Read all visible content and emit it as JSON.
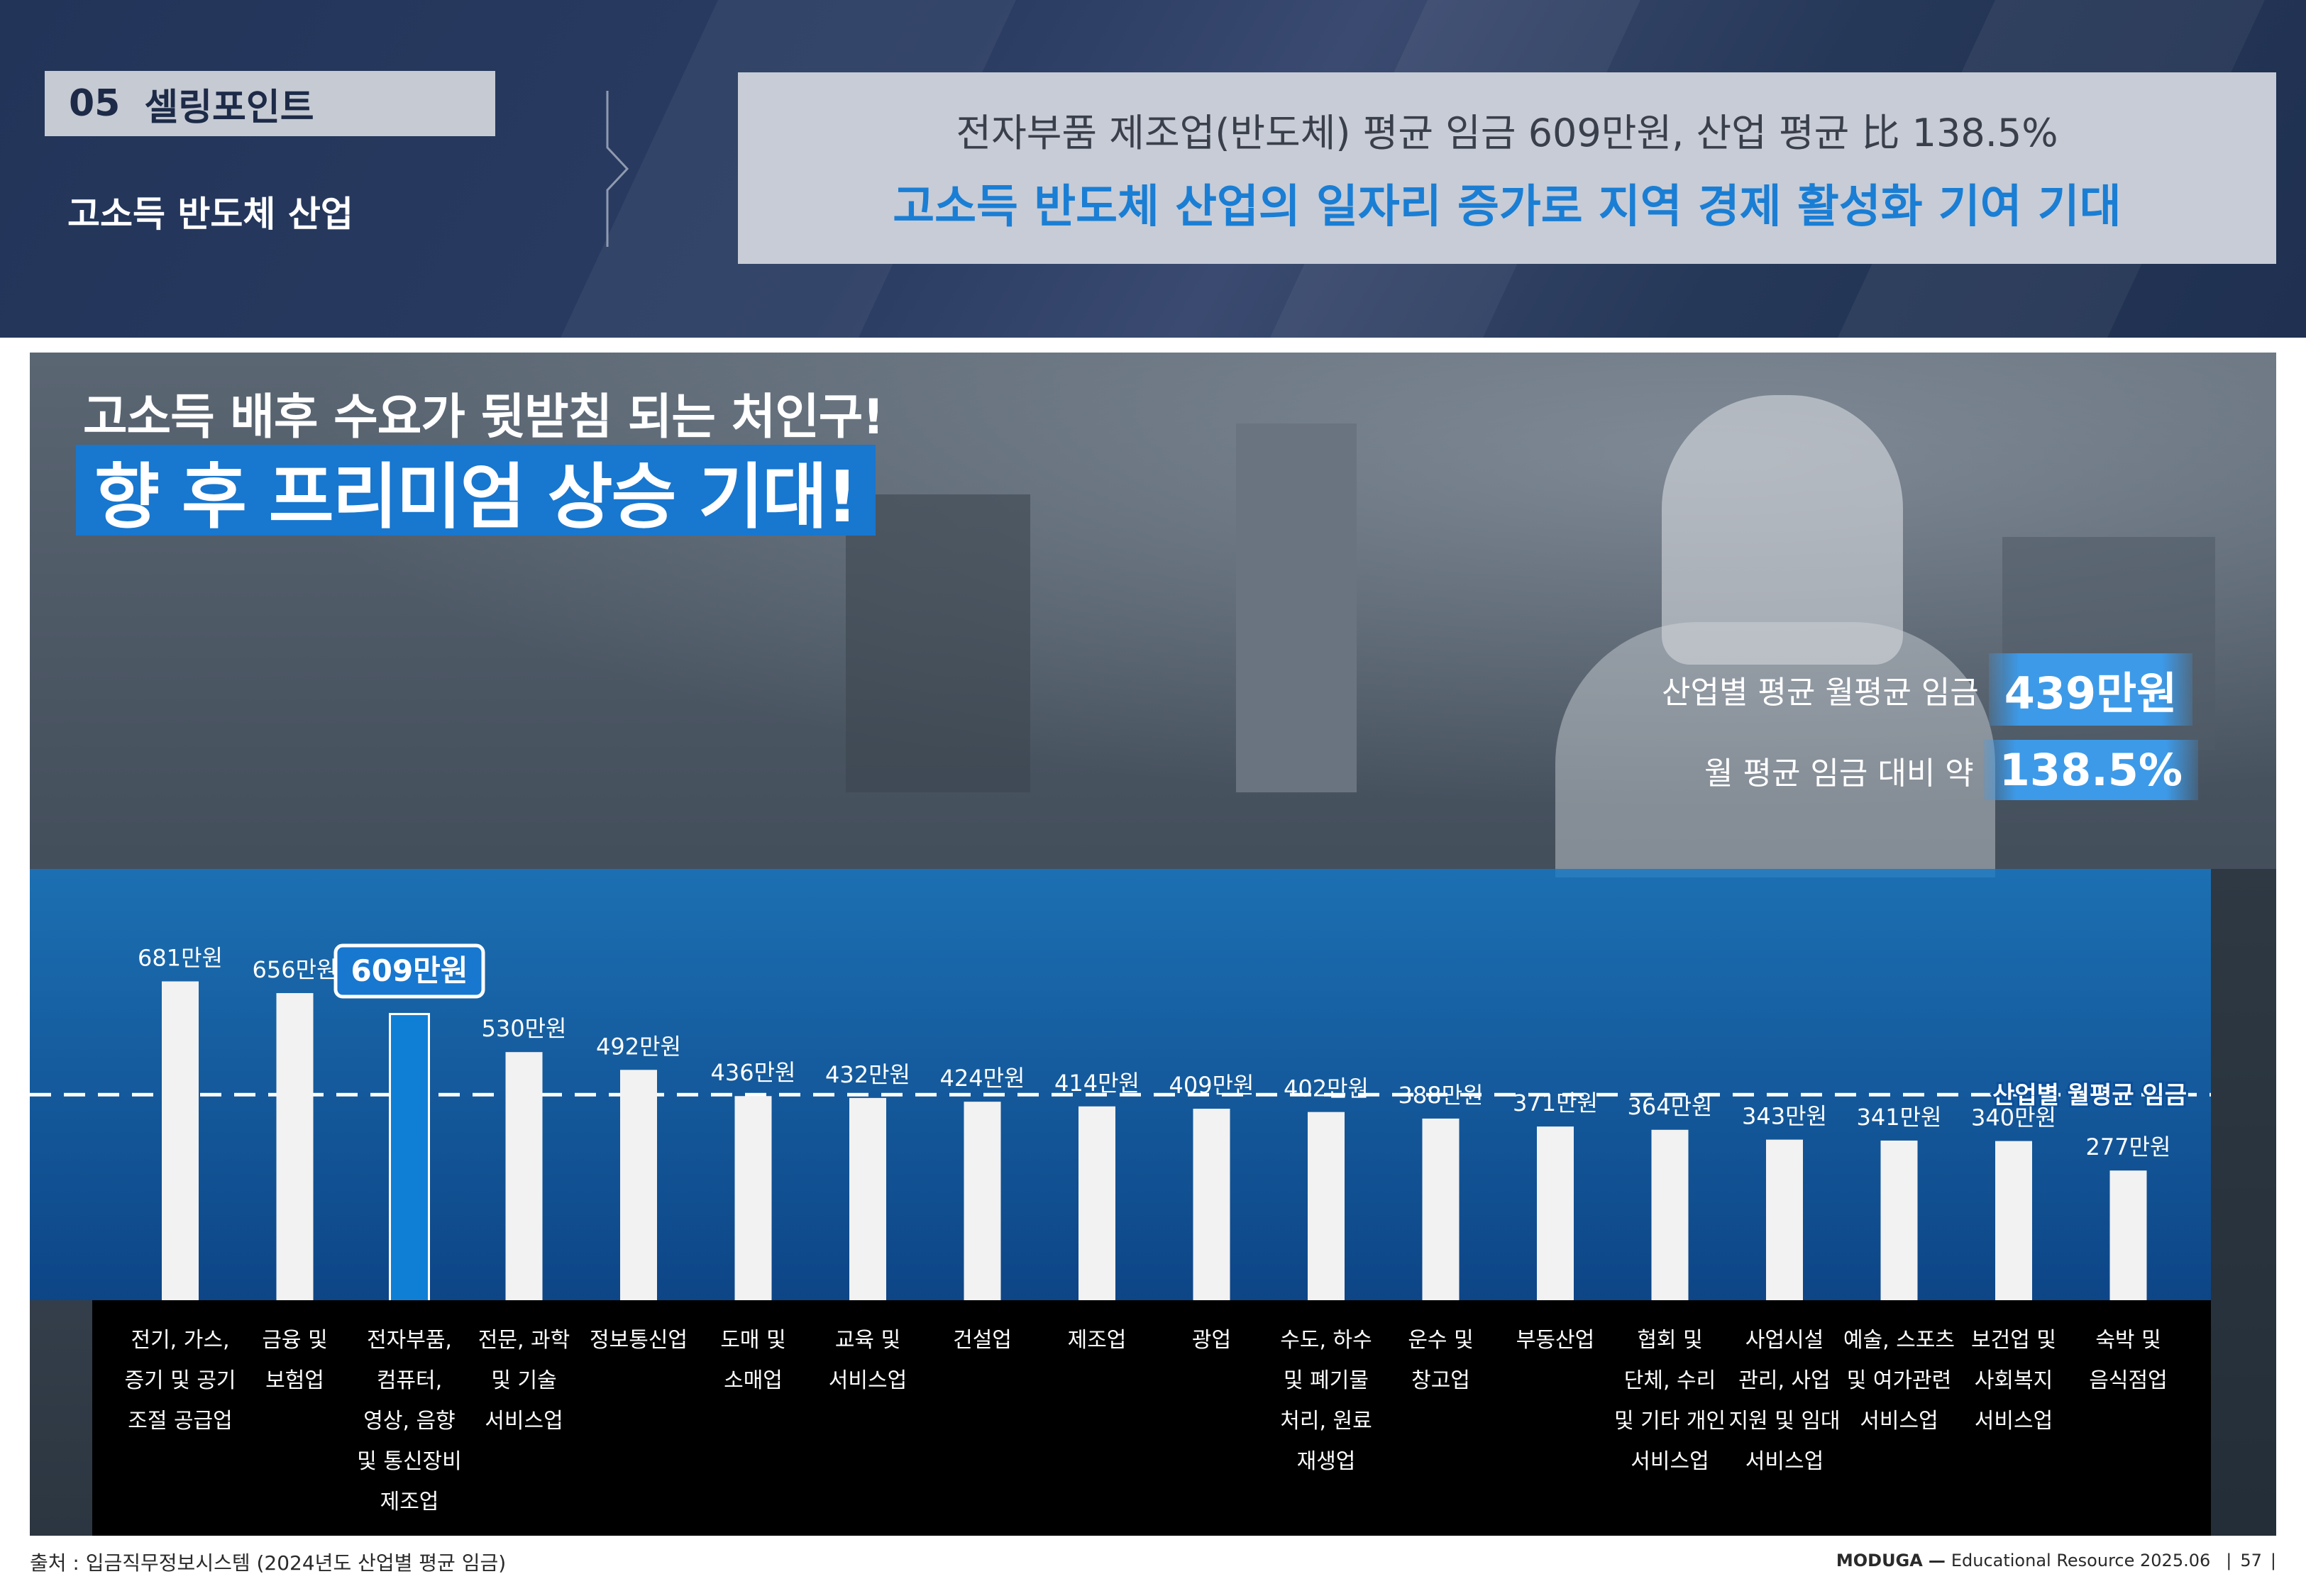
{
  "header": {
    "section_number": "05",
    "section_title": "셀링포인트",
    "section_subtitle": "고소득 반도체 산업",
    "summary_line1": "전자부품 제조업(반도체) 평균 임금 609만원, 산업 평균 比 138.5%",
    "summary_line2": "고소득 반도체 산업의 일자리 증가로 지역 경제 활성화 기여 기대"
  },
  "panel": {
    "headline1": "고소득 배후 수요가 뒷받침 되는 처인구!",
    "headline2": "향 후 프리미엄 상승 기대!",
    "stat1_label": "산업별 평균 월평균 임금",
    "stat1_value": "439만원",
    "stat2_label": "월 평균 임금 대비 약",
    "stat2_value": "138.5%"
  },
  "colors": {
    "navy": "#223458",
    "accent_blue": "#1a7ed4",
    "highlight_bar": "#0f7fd6",
    "bar": "#f2f2f2"
  },
  "chart_data": {
    "type": "bar",
    "categories": [
      [
        "전기, 가스,",
        "증기 및 공기",
        "조절 공급업"
      ],
      [
        "금융 및",
        "보험업"
      ],
      [
        "전자부품,",
        "컴퓨터,",
        "영상, 음향",
        "및 통신장비",
        "제조업"
      ],
      [
        "전문, 과학",
        "및 기술",
        "서비스업"
      ],
      [
        "정보통신업"
      ],
      [
        "도매 및",
        "소매업"
      ],
      [
        "교육 및",
        "서비스업"
      ],
      [
        "건설업"
      ],
      [
        "제조업"
      ],
      [
        "광업"
      ],
      [
        "수도, 하수",
        "및 폐기물",
        "처리, 원료",
        "재생업"
      ],
      [
        "운수 및",
        "창고업"
      ],
      [
        "부동산업"
      ],
      [
        "협회 및",
        "단체, 수리",
        "및 기타 개인",
        "서비스업"
      ],
      [
        "사업시설",
        "관리, 사업",
        "지원 및 임대",
        "서비스업"
      ],
      [
        "예술, 스포츠",
        "및 여가관련",
        "서비스업"
      ],
      [
        "보건업 및",
        "사회복지",
        "서비스업"
      ],
      [
        "숙박 및",
        "음식점업"
      ]
    ],
    "values": [
      681,
      656,
      609,
      530,
      492,
      436,
      432,
      424,
      414,
      409,
      402,
      388,
      371,
      364,
      343,
      341,
      340,
      277
    ],
    "value_labels": [
      "681만원",
      "656만원",
      "609만원",
      "530만원",
      "492만원",
      "436만원",
      "432만원",
      "424만원",
      "414만원",
      "409만원",
      "402만원",
      "388만원",
      "371만원",
      "364만원",
      "343만원",
      "341만원",
      "340만원",
      "277만원"
    ],
    "highlight_index": 2,
    "reference_line": {
      "value": 439,
      "label": "산업별 월평균 임금"
    },
    "ylim": [
      0,
      700
    ],
    "title": "",
    "xlabel": "",
    "ylabel": "",
    "grid": false
  },
  "footer": {
    "source": "출처 : 입금직무정보시스템 (2024년도 산업별 평균 임금)",
    "brand": "MODUGA",
    "resource": "Educational Resource 2025.06",
    "page": "57"
  }
}
